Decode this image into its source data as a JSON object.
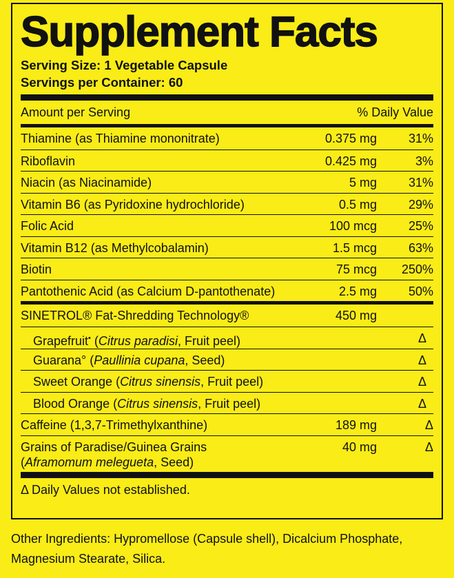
{
  "header": {
    "title": "Supplement Facts",
    "serving_size": "Serving Size: 1 Vegetable Capsule",
    "servings": "Servings per Container: 60"
  },
  "columns": {
    "amount": "Amount per Serving",
    "dv": "% Daily Value"
  },
  "rows": [
    {
      "name": [
        [
          {
            "text": "Thiamine (as Thiamine mononitrate)"
          }
        ]
      ],
      "amount": "0.375 mg",
      "dv": "31%"
    },
    {
      "name": [
        [
          {
            "text": "Riboflavin"
          }
        ]
      ],
      "amount": "0.425 mg",
      "dv": "3%"
    },
    {
      "name": [
        [
          {
            "text": "Niacin (as Niacinamide)"
          }
        ]
      ],
      "amount": "5 mg",
      "dv": "31%"
    },
    {
      "name": [
        [
          {
            "text": "Vitamin B6 (as Pyridoxine hydrochloride)"
          }
        ]
      ],
      "amount": "0.5 mg",
      "dv": "29%"
    },
    {
      "name": [
        [
          {
            "text": "Folic Acid"
          }
        ]
      ],
      "amount": "100 mcg",
      "dv": "25%"
    },
    {
      "name": [
        [
          {
            "text": "Vitamin B12 (as Methylcobalamin)"
          }
        ]
      ],
      "amount": "1.5 mcg",
      "dv": "63%"
    },
    {
      "name": [
        [
          {
            "text": "Biotin"
          }
        ]
      ],
      "amount": "75 mcg",
      "dv": "250%"
    },
    {
      "name": [
        [
          {
            "text": "Pantothenic Acid (as Calcium D-pantothenate)"
          }
        ]
      ],
      "amount": "2.5 mg",
      "dv": "50%"
    },
    {
      "name": [
        [
          {
            "text": "SINETROL® Fat-Shredding Technology®"
          }
        ]
      ],
      "amount": "450 mg",
      "group_start": true
    },
    {
      "name": [
        [
          {
            "text": "Grapefruit"
          },
          {
            "text": "•",
            "sup": true
          },
          {
            "text": " ("
          },
          {
            "text": "Citrus paradisi",
            "italic": true
          },
          {
            "text": ", Fruit peel)"
          }
        ]
      ],
      "dv": "Δ",
      "indent": true
    },
    {
      "name": [
        [
          {
            "text": "Guarana° ("
          },
          {
            "text": "Paullinia cupana",
            "italic": true
          },
          {
            "text": ", Seed)"
          }
        ]
      ],
      "dv": "Δ",
      "indent": true
    },
    {
      "name": [
        [
          {
            "text": "Sweet Orange ("
          },
          {
            "text": "Citrus sinensis",
            "italic": true
          },
          {
            "text": ", Fruit peel)"
          }
        ]
      ],
      "dv": "Δ",
      "indent": true
    },
    {
      "name": [
        [
          {
            "text": "Blood Orange ("
          },
          {
            "text": "Citrus sinensis",
            "italic": true
          },
          {
            "text": ", Fruit peel)"
          }
        ]
      ],
      "dv": "Δ",
      "indent": true
    },
    {
      "name": [
        [
          {
            "text": "Caffeine (1,3,7-Trimethylxanthine)"
          }
        ]
      ],
      "amount": "189 mg",
      "dv": "Δ"
    },
    {
      "name": [
        [
          {
            "text": "Grains of Paradise/Guinea Grains"
          }
        ],
        [
          {
            "text": "("
          },
          {
            "text": "Aframomum melegueta",
            "italic": true
          },
          {
            "text": ", Seed)"
          }
        ]
      ],
      "amount": "40 mg",
      "dv": "Δ"
    }
  ],
  "footnote": "Δ Daily Values not established.",
  "other_ingredients": [
    "Other Ingredients: Hypromellose (Capsule shell), Dicalcium Phosphate,",
    "Magnesium Stearate, Silica."
  ]
}
